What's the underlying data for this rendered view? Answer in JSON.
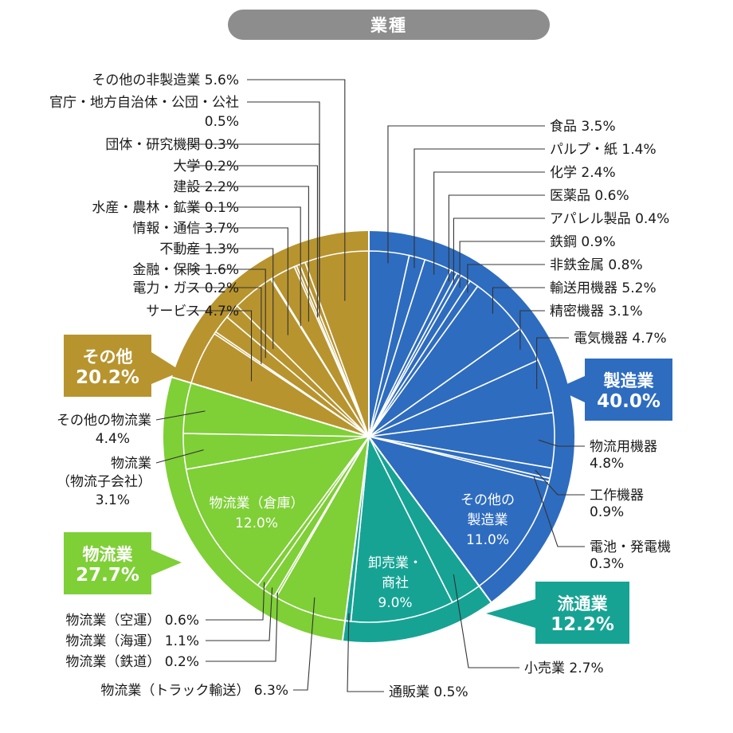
{
  "title": "業種",
  "chart_data": {
    "type": "pie",
    "title": "業種",
    "groups": [
      {
        "name": "製造業",
        "value_label": "40.0%",
        "value": 40.0,
        "color": "#2e6cbf"
      },
      {
        "name": "流通業",
        "value_label": "12.2%",
        "value": 12.2,
        "color": "#16a394"
      },
      {
        "name": "物流業",
        "value_label": "27.7%",
        "value": 27.7,
        "color": "#7fcf37"
      },
      {
        "name": "その他",
        "value_label": "20.2%",
        "value": 20.2,
        "color": "#b8942f"
      }
    ],
    "slices": [
      {
        "group": 0,
        "label": "食品",
        "value": 3.5,
        "value_label": "3.5%"
      },
      {
        "group": 0,
        "label": "パルプ・紙",
        "value": 1.4,
        "value_label": "1.4%"
      },
      {
        "group": 0,
        "label": "化学",
        "value": 2.4,
        "value_label": "2.4%"
      },
      {
        "group": 0,
        "label": "医薬品",
        "value": 0.6,
        "value_label": "0.6%"
      },
      {
        "group": 0,
        "label": "アパレル製品",
        "value": 0.4,
        "value_label": "0.4%"
      },
      {
        "group": 0,
        "label": "鉄鋼",
        "value": 0.9,
        "value_label": "0.9%"
      },
      {
        "group": 0,
        "label": "非鉄金属",
        "value": 0.8,
        "value_label": "0.8%"
      },
      {
        "group": 0,
        "label": "輸送用機器",
        "value": 5.2,
        "value_label": "5.2%"
      },
      {
        "group": 0,
        "label": "精密機器",
        "value": 3.1,
        "value_label": "3.1%"
      },
      {
        "group": 0,
        "label": "電気機器",
        "value": 4.7,
        "value_label": "4.7%"
      },
      {
        "group": 0,
        "label": "物流用機器",
        "value": 4.8,
        "value_label": "4.8%"
      },
      {
        "group": 0,
        "label": "工作機器",
        "value": 0.9,
        "value_label": "0.9%"
      },
      {
        "group": 0,
        "label": "電池・発電機",
        "value": 0.3,
        "value_label": "0.3%"
      },
      {
        "group": 0,
        "label": "その他の製造業",
        "value": 11.0,
        "value_label": "11.0%"
      },
      {
        "group": 1,
        "label": "小売業",
        "value": 2.7,
        "value_label": "2.7%"
      },
      {
        "group": 1,
        "label": "卸売業・商社",
        "value": 9.0,
        "value_label": "9.0%"
      },
      {
        "group": 1,
        "label": "通販業",
        "value": 0.5,
        "value_label": "0.5%"
      },
      {
        "group": 2,
        "label": "物流業（トラック輸送）",
        "value": 6.3,
        "value_label": "6.3%"
      },
      {
        "group": 2,
        "label": "物流業（鉄道）",
        "value": 0.2,
        "value_label": "0.2%"
      },
      {
        "group": 2,
        "label": "物流業（海運）",
        "value": 1.1,
        "value_label": "1.1%"
      },
      {
        "group": 2,
        "label": "物流業（空運）",
        "value": 0.6,
        "value_label": "0.6%"
      },
      {
        "group": 2,
        "label": "物流業（倉庫）",
        "value": 12.0,
        "value_label": "12.0%"
      },
      {
        "group": 2,
        "label": "物流業（物流子会社）",
        "value": 3.1,
        "value_label": "3.1%"
      },
      {
        "group": 2,
        "label": "その他の物流業",
        "value": 4.4,
        "value_label": "4.4%"
      },
      {
        "group": 3,
        "label": "サービス",
        "value": 4.7,
        "value_label": "4.7%"
      },
      {
        "group": 3,
        "label": "電力・ガス",
        "value": 0.2,
        "value_label": "0.2%"
      },
      {
        "group": 3,
        "label": "金融・保険",
        "value": 1.6,
        "value_label": "1.6%"
      },
      {
        "group": 3,
        "label": "不動産",
        "value": 1.3,
        "value_label": "1.3%"
      },
      {
        "group": 3,
        "label": "情報・通信",
        "value": 3.7,
        "value_label": "3.7%"
      },
      {
        "group": 3,
        "label": "水産・農林・鉱業",
        "value": 0.1,
        "value_label": "0.1%"
      },
      {
        "group": 3,
        "label": "建設",
        "value": 2.2,
        "value_label": "2.2%"
      },
      {
        "group": 3,
        "label": "大学",
        "value": 0.2,
        "value_label": "0.2%"
      },
      {
        "group": 3,
        "label": "団体・研究機関",
        "value": 0.3,
        "value_label": "0.3%"
      },
      {
        "group": 3,
        "label": "官庁・地方自治体・公団・公社",
        "value": 0.5,
        "value_label": "0.5%"
      },
      {
        "group": 3,
        "label": "その他の非製造業",
        "value": 5.6,
        "value_label": "5.6%"
      }
    ]
  }
}
